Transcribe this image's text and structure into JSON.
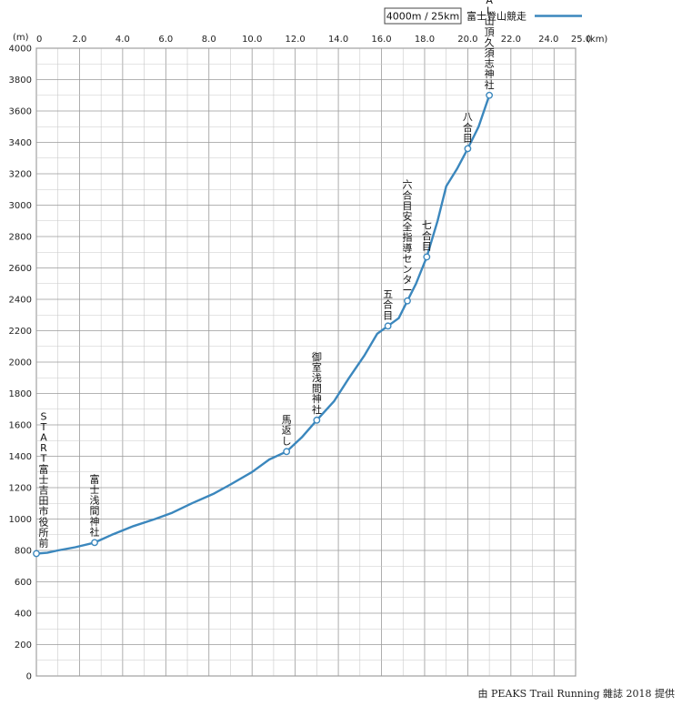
{
  "chart_data": {
    "type": "line",
    "x_unit": "(km)",
    "y_unit": "(m)",
    "xlim": [
      0,
      25
    ],
    "ylim": [
      0,
      4000
    ],
    "x_ticks": [
      {
        "value": 0,
        "label": "0"
      },
      {
        "value": 2,
        "label": "2.0"
      },
      {
        "value": 4,
        "label": "4.0"
      },
      {
        "value": 6,
        "label": "6.0"
      },
      {
        "value": 8,
        "label": "8.0"
      },
      {
        "value": 10,
        "label": "10.0"
      },
      {
        "value": 12,
        "label": "12.0"
      },
      {
        "value": 14,
        "label": "14.0"
      },
      {
        "value": 16,
        "label": "16.0"
      },
      {
        "value": 18,
        "label": "18.0"
      },
      {
        "value": 20,
        "label": "20.0"
      },
      {
        "value": 22,
        "label": "22.0"
      },
      {
        "value": 24,
        "label": "24.0"
      },
      {
        "value": 25,
        "label": "25.0"
      }
    ],
    "y_ticks": [
      0,
      200,
      400,
      600,
      800,
      1000,
      1200,
      1400,
      1600,
      1800,
      2000,
      2200,
      2400,
      2600,
      2800,
      3000,
      3200,
      3400,
      3600,
      3800,
      4000
    ],
    "grid": true,
    "legend": {
      "box_text": "4000m / 25km",
      "series_label": "富士登山競走",
      "placement": "top-right"
    },
    "series": [
      {
        "name": "富士登山競走",
        "color": "#3b87bd",
        "x": [
          0,
          0.5,
          1.0,
          1.8,
          2.7,
          3.5,
          4.5,
          5.5,
          6.3,
          7.2,
          8.2,
          9.0,
          10.0,
          10.8,
          11.6,
          12.3,
          13.0,
          13.8,
          14.5,
          15.2,
          15.8,
          16.3,
          16.8,
          17.2,
          17.6,
          18.1,
          18.6,
          19.0,
          19.5,
          20.0,
          20.5,
          21.0
        ],
        "y": [
          780,
          785,
          800,
          820,
          850,
          900,
          955,
          1000,
          1040,
          1100,
          1160,
          1220,
          1300,
          1380,
          1430,
          1520,
          1630,
          1750,
          1900,
          2040,
          2180,
          2230,
          2280,
          2390,
          2500,
          2670,
          2900,
          3120,
          3230,
          3360,
          3500,
          3700
        ]
      }
    ],
    "markers": [
      {
        "x": 0,
        "y": 780,
        "label": "START富士吉田市役所前"
      },
      {
        "x": 2.7,
        "y": 850,
        "label": "富士浅間神社"
      },
      {
        "x": 11.6,
        "y": 1430,
        "label": "馬返し"
      },
      {
        "x": 13.0,
        "y": 1630,
        "label": "御室浅間神社"
      },
      {
        "x": 16.3,
        "y": 2230,
        "label": "五合目"
      },
      {
        "x": 17.2,
        "y": 2390,
        "label": "六合目安全指導センター"
      },
      {
        "x": 18.1,
        "y": 2670,
        "label": "七合目"
      },
      {
        "x": 20.0,
        "y": 3360,
        "label": "八合目"
      },
      {
        "x": 21.0,
        "y": 3700,
        "label": "GOAL山頂久須志神社"
      }
    ]
  },
  "credit": "由 PEAKS Trail Running 雜誌 2018 提供"
}
